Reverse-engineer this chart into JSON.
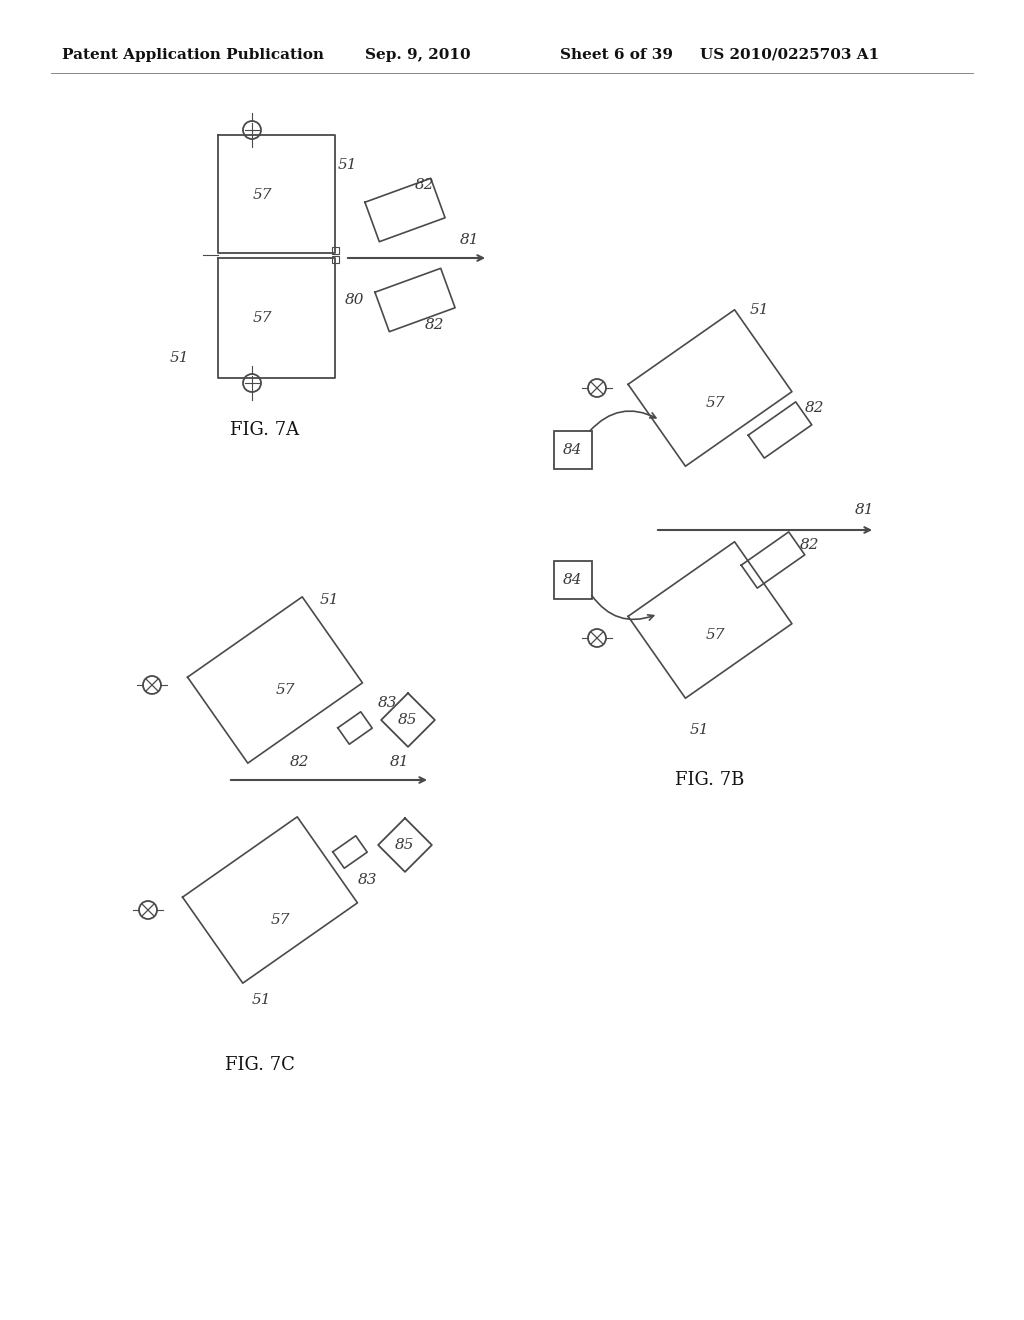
{
  "background_color": "#ffffff",
  "header_text": "Patent Application Publication",
  "header_date": "Sep. 9, 2010",
  "header_sheet": "Sheet 6 of 39",
  "header_patent": "US 2010/0225703 A1",
  "fig7a_label": "FIG. 7A",
  "fig7b_label": "FIG. 7B",
  "fig7c_label": "FIG. 7C",
  "line_color": "#4a4a4a",
  "text_color": "#3a3a3a",
  "header_fontsize": 11,
  "label_fontsize": 13,
  "ref_fontsize": 11
}
